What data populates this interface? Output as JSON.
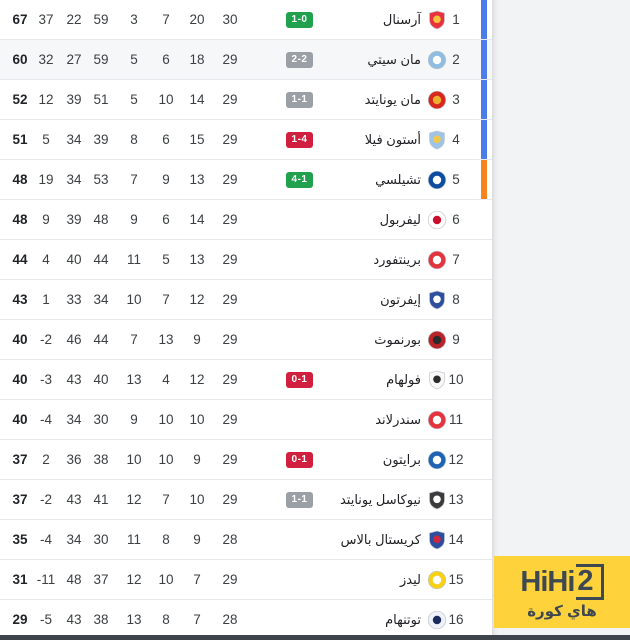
{
  "theme": {
    "page_bg": "#f1f3f4",
    "table_bg": "#ffffff",
    "divider": "#e7e9ec",
    "highlight_row_bg": "#f6f7f8",
    "bottom_bar": "#3d444c"
  },
  "standings": {
    "zone_colors": {
      "ucl": "#4c7ceb",
      "uel": "#f8831f"
    },
    "badge_colors": {
      "win": "#21a14d",
      "draw": "#9aa0a6",
      "loss": "#d11f3f"
    },
    "rows": [
      {
        "pos": "1",
        "team": "آرسنال",
        "result": "1-0",
        "result_type": "win",
        "played": "30",
        "won": "20",
        "drawn": "7",
        "lost": "3",
        "gf": "59",
        "ga": "22",
        "gd": "37",
        "pts": "67",
        "zone": "ucl",
        "highlighted": false,
        "crest": {
          "icon": "arsenal-crest-icon",
          "shape": "shield",
          "main": "#e8333f",
          "accent": "#f6c33f"
        }
      },
      {
        "pos": "2",
        "team": "مان سيتي",
        "result": "2-2",
        "result_type": "draw",
        "played": "29",
        "won": "18",
        "drawn": "6",
        "lost": "5",
        "gf": "59",
        "ga": "27",
        "gd": "32",
        "pts": "60",
        "zone": "ucl",
        "highlighted": true,
        "crest": {
          "icon": "man-city-crest-icon",
          "shape": "circle",
          "main": "#8fbce0",
          "accent": "#ffffff"
        }
      },
      {
        "pos": "3",
        "team": "مان يونايتد",
        "result": "1-1",
        "result_type": "draw",
        "played": "29",
        "won": "14",
        "drawn": "10",
        "lost": "5",
        "gf": "51",
        "ga": "39",
        "gd": "12",
        "pts": "52",
        "zone": "ucl",
        "highlighted": false,
        "crest": {
          "icon": "man-united-crest-icon",
          "shape": "circle",
          "main": "#d6281e",
          "accent": "#efb02f"
        }
      },
      {
        "pos": "4",
        "team": "أستون فيلا",
        "result": "1-4",
        "result_type": "loss",
        "played": "29",
        "won": "15",
        "drawn": "6",
        "lost": "8",
        "gf": "39",
        "ga": "34",
        "gd": "5",
        "pts": "51",
        "zone": "ucl",
        "highlighted": false,
        "crest": {
          "icon": "aston-villa-crest-icon",
          "shape": "shield",
          "main": "#9dc4e8",
          "accent": "#f2c84b"
        }
      },
      {
        "pos": "5",
        "team": "تشيلسي",
        "result": "4-1",
        "result_type": "win",
        "played": "29",
        "won": "13",
        "drawn": "9",
        "lost": "7",
        "gf": "53",
        "ga": "34",
        "gd": "19",
        "pts": "48",
        "zone": "uel",
        "highlighted": false,
        "crest": {
          "icon": "chelsea-crest-icon",
          "shape": "circle",
          "main": "#0c4da2",
          "accent": "#ffffff"
        }
      },
      {
        "pos": "6",
        "team": "ليفربول",
        "result": "",
        "result_type": "",
        "played": "29",
        "won": "14",
        "drawn": "6",
        "lost": "9",
        "gf": "48",
        "ga": "39",
        "gd": "9",
        "pts": "48",
        "zone": "",
        "highlighted": false,
        "crest": {
          "icon": "liverpool-crest-icon",
          "shape": "circle",
          "main": "#ffffff",
          "accent": "#c8102e"
        }
      },
      {
        "pos": "7",
        "team": "برينتفورد",
        "result": "",
        "result_type": "",
        "played": "29",
        "won": "13",
        "drawn": "5",
        "lost": "11",
        "gf": "44",
        "ga": "40",
        "gd": "4",
        "pts": "44",
        "zone": "",
        "highlighted": false,
        "crest": {
          "icon": "brentford-crest-icon",
          "shape": "circle",
          "main": "#e23540",
          "accent": "#ffffff"
        }
      },
      {
        "pos": "8",
        "team": "إيفرتون",
        "result": "",
        "result_type": "",
        "played": "29",
        "won": "12",
        "drawn": "7",
        "lost": "10",
        "gf": "34",
        "ga": "33",
        "gd": "1",
        "pts": "43",
        "zone": "",
        "highlighted": false,
        "crest": {
          "icon": "everton-crest-icon",
          "shape": "shield",
          "main": "#2d4f9e",
          "accent": "#ffffff"
        }
      },
      {
        "pos": "9",
        "team": "بورنموث",
        "result": "",
        "result_type": "",
        "played": "29",
        "won": "9",
        "drawn": "13",
        "lost": "7",
        "gf": "44",
        "ga": "46",
        "gd": "-2",
        "pts": "40",
        "zone": "",
        "highlighted": false,
        "crest": {
          "icon": "bournemouth-crest-icon",
          "shape": "circle",
          "main": "#b9242a",
          "accent": "#2b2b2b"
        }
      },
      {
        "pos": "10",
        "team": "فولهام",
        "result": "0-1",
        "result_type": "loss",
        "played": "29",
        "won": "12",
        "drawn": "4",
        "lost": "13",
        "gf": "40",
        "ga": "43",
        "gd": "-3",
        "pts": "40",
        "zone": "",
        "highlighted": false,
        "crest": {
          "icon": "fulham-crest-icon",
          "shape": "shield",
          "main": "#f7f7f7",
          "accent": "#2b2b2b"
        }
      },
      {
        "pos": "11",
        "team": "سندرلاند",
        "result": "",
        "result_type": "",
        "played": "29",
        "won": "10",
        "drawn": "10",
        "lost": "9",
        "gf": "30",
        "ga": "34",
        "gd": "-4",
        "pts": "40",
        "zone": "",
        "highlighted": false,
        "crest": {
          "icon": "sunderland-crest-icon",
          "shape": "circle",
          "main": "#e4343f",
          "accent": "#ffffff"
        }
      },
      {
        "pos": "12",
        "team": "برايتون",
        "result": "0-1",
        "result_type": "loss",
        "played": "29",
        "won": "9",
        "drawn": "10",
        "lost": "10",
        "gf": "38",
        "ga": "36",
        "gd": "2",
        "pts": "37",
        "zone": "",
        "highlighted": false,
        "crest": {
          "icon": "brighton-crest-icon",
          "shape": "circle",
          "main": "#1d64b5",
          "accent": "#ffffff"
        }
      },
      {
        "pos": "13",
        "team": "نيوكاسل يونايتد",
        "result": "1-1",
        "result_type": "draw",
        "played": "29",
        "won": "10",
        "drawn": "7",
        "lost": "12",
        "gf": "41",
        "ga": "43",
        "gd": "-2",
        "pts": "37",
        "zone": "",
        "highlighted": false,
        "crest": {
          "icon": "newcastle-crest-icon",
          "shape": "shield",
          "main": "#3b3b3b",
          "accent": "#ffffff"
        }
      },
      {
        "pos": "14",
        "team": "كريستال بالاس",
        "result": "",
        "result_type": "",
        "played": "28",
        "won": "9",
        "drawn": "8",
        "lost": "11",
        "gf": "30",
        "ga": "34",
        "gd": "-4",
        "pts": "35",
        "zone": "",
        "highlighted": false,
        "crest": {
          "icon": "crystal-palace-crest-icon",
          "shape": "shield",
          "main": "#2b4f9e",
          "accent": "#cf2742"
        }
      },
      {
        "pos": "15",
        "team": "ليدز",
        "result": "",
        "result_type": "",
        "played": "29",
        "won": "7",
        "drawn": "10",
        "lost": "12",
        "gf": "37",
        "ga": "48",
        "gd": "-11",
        "pts": "31",
        "zone": "",
        "highlighted": false,
        "crest": {
          "icon": "leeds-crest-icon",
          "shape": "circle",
          "main": "#f7d117",
          "accent": "#ffffff"
        }
      },
      {
        "pos": "16",
        "team": "توتنهام",
        "result": "",
        "result_type": "",
        "played": "28",
        "won": "7",
        "drawn": "8",
        "lost": "13",
        "gf": "38",
        "ga": "43",
        "gd": "-5",
        "pts": "29",
        "zone": "",
        "highlighted": false,
        "crest": {
          "icon": "tottenham-crest-icon",
          "shape": "circle",
          "main": "#eef1f8",
          "accent": "#1c2a5e"
        }
      }
    ]
  },
  "sidebar": {
    "logo_hihi": "HiHi",
    "logo_2": "2",
    "logo_subtext": "هاي كورة",
    "logo_bg": "#fed23b",
    "logo_text_color": "#3d4850"
  }
}
